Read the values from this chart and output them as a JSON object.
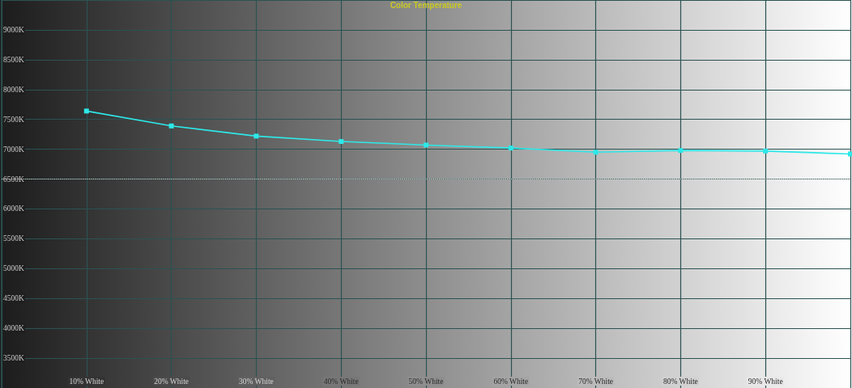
{
  "chart_data": {
    "type": "line",
    "title": "Color Temperature",
    "x": [
      10,
      20,
      30,
      40,
      50,
      60,
      70,
      80,
      90,
      100
    ],
    "series": [
      {
        "color": "#2ee8e8",
        "values": [
          7640,
          7390,
          7220,
          7130,
          7070,
          7020,
          6950,
          6980,
          6970,
          6920
        ]
      }
    ],
    "xlim": [
      0,
      100
    ],
    "xticks": [
      {
        "value": 10,
        "label": "10% White"
      },
      {
        "value": 20,
        "label": "20% White"
      },
      {
        "value": 30,
        "label": "30% White"
      },
      {
        "value": 40,
        "label": "40% White"
      },
      {
        "value": 50,
        "label": "50% White"
      },
      {
        "value": 60,
        "label": "60% White"
      },
      {
        "value": 70,
        "label": "70% White"
      },
      {
        "value": 80,
        "label": "80% White"
      },
      {
        "value": 90,
        "label": "90% White"
      }
    ],
    "ylim": [
      3000,
      9500
    ],
    "yticks": [
      {
        "value": 3500,
        "label": "3500K"
      },
      {
        "value": 4000,
        "label": "4000K"
      },
      {
        "value": 4500,
        "label": "4500K"
      },
      {
        "value": 5000,
        "label": "5000K"
      },
      {
        "value": 5500,
        "label": "5500K"
      },
      {
        "value": 6000,
        "label": "6000K"
      },
      {
        "value": 6500,
        "label": "6500K"
      },
      {
        "value": 7000,
        "label": "7000K"
      },
      {
        "value": 7500,
        "label": "7500K"
      },
      {
        "value": 8000,
        "label": "8000K"
      },
      {
        "value": 8500,
        "label": "8500K"
      },
      {
        "value": 9000,
        "label": "9000K"
      }
    ],
    "grid": true,
    "marker": "square",
    "line_style": "solid",
    "ref_lines": [
      {
        "axis": "y",
        "value": 6500,
        "color": "#d8d8d8",
        "line_style": "dotted"
      }
    ]
  }
}
